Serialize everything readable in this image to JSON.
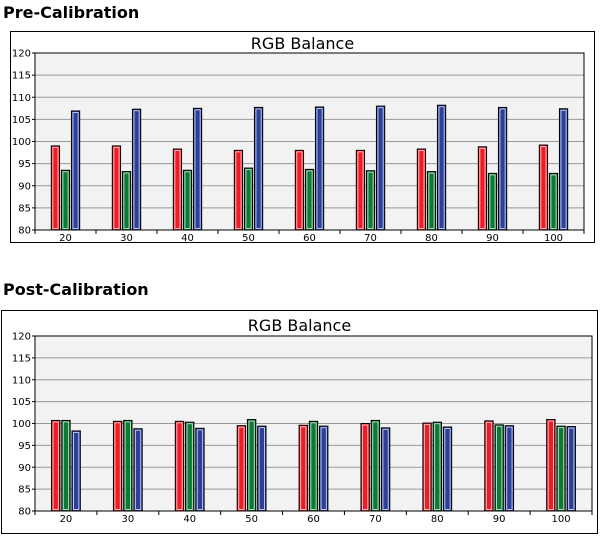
{
  "sections": [
    {
      "heading": "Pre-Calibration"
    },
    {
      "heading": "Post-Calibration"
    }
  ],
  "colors": {
    "red": "#ee1c25",
    "green": "#0a7a35",
    "blue": "#2c3f9c",
    "plot_bg": "#f2f2f2",
    "grid": "#999999"
  },
  "chart_data": [
    {
      "type": "bar",
      "title": "RGB Balance",
      "categories": [
        "20",
        "30",
        "40",
        "50",
        "60",
        "70",
        "80",
        "90",
        "100"
      ],
      "ylim": [
        80,
        120
      ],
      "yticks": [
        80,
        85,
        90,
        95,
        100,
        105,
        110,
        115,
        120
      ],
      "grid": true,
      "series": [
        {
          "color": "#ee1c25",
          "values": [
            99.0,
            99.0,
            98.3,
            98.0,
            98.0,
            98.0,
            98.3,
            98.8,
            99.2
          ]
        },
        {
          "color": "#0a7a35",
          "values": [
            93.5,
            93.2,
            93.5,
            94.0,
            93.7,
            93.4,
            93.2,
            92.8,
            92.8
          ]
        },
        {
          "color": "#2c3f9c",
          "values": [
            106.9,
            107.3,
            107.5,
            107.7,
            107.8,
            108.0,
            108.2,
            107.7,
            107.4
          ]
        }
      ]
    },
    {
      "type": "bar",
      "title": "RGB Balance",
      "categories": [
        "20",
        "30",
        "40",
        "50",
        "60",
        "70",
        "80",
        "90",
        "100"
      ],
      "ylim": [
        80,
        120
      ],
      "yticks": [
        80,
        85,
        90,
        95,
        100,
        105,
        110,
        115,
        120
      ],
      "grid": true,
      "series": [
        {
          "color": "#ee1c25",
          "values": [
            100.7,
            100.5,
            100.5,
            99.5,
            99.6,
            100.0,
            100.1,
            100.6,
            100.9
          ]
        },
        {
          "color": "#0a7a35",
          "values": [
            100.7,
            100.7,
            100.3,
            100.9,
            100.5,
            100.7,
            100.3,
            99.7,
            99.4
          ]
        },
        {
          "color": "#2c3f9c",
          "values": [
            98.3,
            98.8,
            98.9,
            99.4,
            99.4,
            99.0,
            99.2,
            99.5,
            99.3
          ]
        }
      ]
    }
  ]
}
